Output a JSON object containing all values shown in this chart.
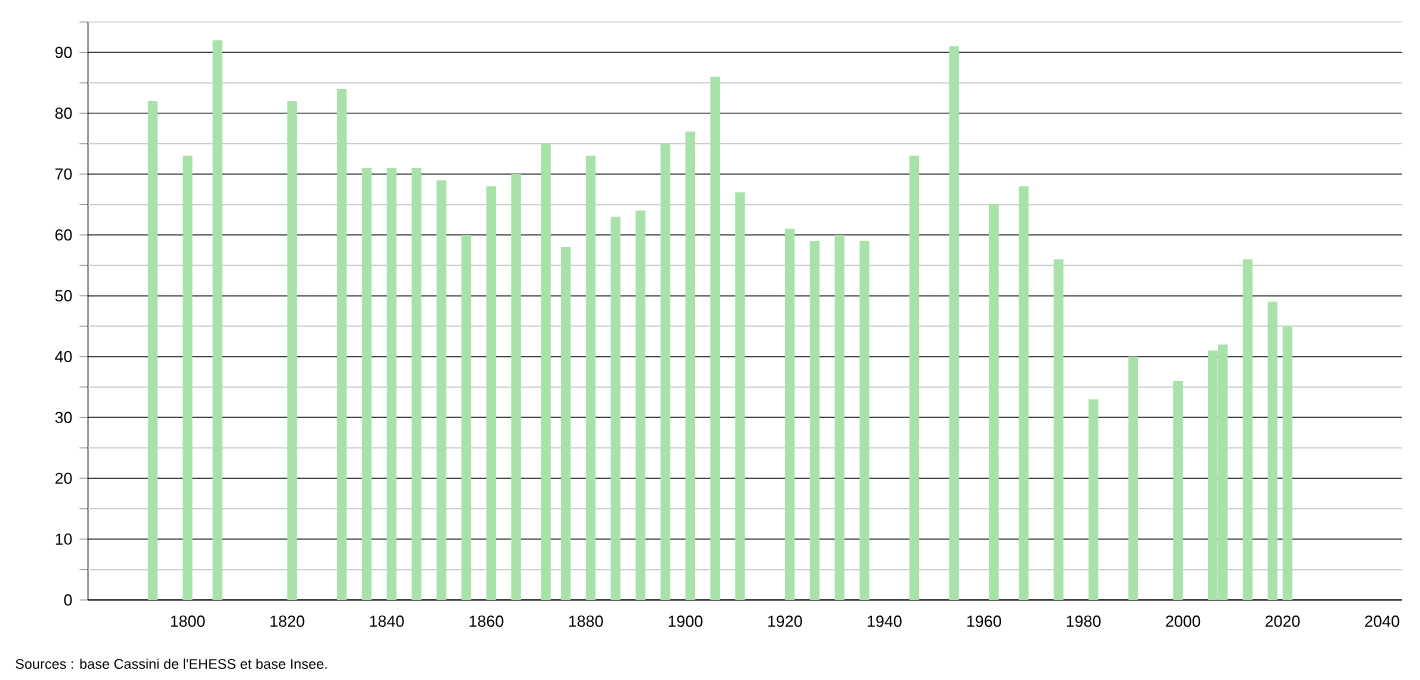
{
  "chart_data": {
    "type": "bar",
    "color": "#a8e2a8",
    "grid": "y",
    "x": [
      1793,
      1800,
      1806,
      1821,
      1831,
      1836,
      1841,
      1846,
      1851,
      1856,
      1861,
      1866,
      1872,
      1876,
      1881,
      1886,
      1891,
      1896,
      1901,
      1906,
      1911,
      1921,
      1926,
      1931,
      1936,
      1946,
      1954,
      1962,
      1968,
      1975,
      1982,
      1990,
      1999,
      2006,
      2008,
      2013,
      2018,
      2021
    ],
    "values": [
      82,
      73,
      92,
      82,
      84,
      71,
      71,
      71,
      69,
      60,
      68,
      70,
      75,
      58,
      73,
      63,
      64,
      75,
      77,
      86,
      67,
      61,
      59,
      60,
      59,
      73,
      91,
      65,
      68,
      56,
      33,
      40,
      36,
      41,
      42,
      56,
      49,
      45
    ],
    "xlim": [
      1780,
      2044
    ],
    "xticks": [
      1800,
      1820,
      1840,
      1860,
      1880,
      1900,
      1920,
      1940,
      1960,
      1980,
      2000,
      2020,
      2040
    ],
    "ylim": [
      0,
      95
    ],
    "yticks": [
      0,
      {
        "value": 5,
        "label": null
      },
      10,
      {
        "value": 15,
        "label": null
      },
      20,
      {
        "value": 25,
        "label": null
      },
      30,
      {
        "value": 35,
        "label": null
      },
      40,
      {
        "value": 45,
        "label": null
      },
      50,
      {
        "value": 55,
        "label": null
      },
      60,
      {
        "value": 65,
        "label": null
      },
      70,
      {
        "value": 75,
        "label": null
      },
      80,
      {
        "value": 85,
        "label": null
      },
      90,
      {
        "value": 95,
        "label": null
      }
    ],
    "annotations": [
      "Sources : base Cassini de l'EHESS et base Insee."
    ]
  }
}
